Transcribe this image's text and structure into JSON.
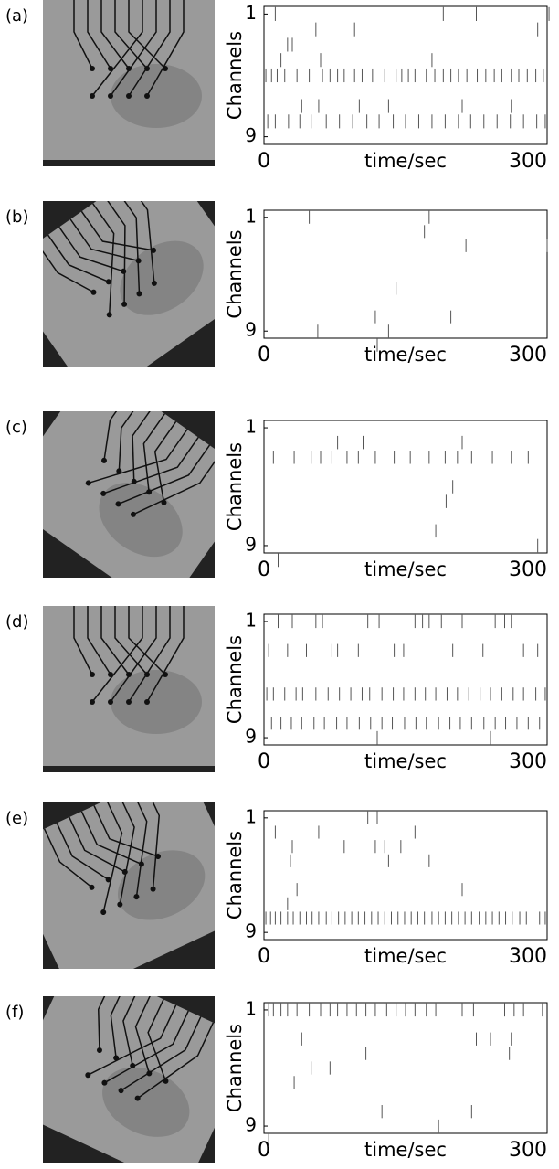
{
  "chart_data": [
    {
      "type": "raster",
      "panel_label": "(a)",
      "ylabel": "Channels",
      "xlabel": "time/sec",
      "xlim": [
        0,
        300
      ],
      "xticks": [
        0,
        300
      ],
      "ylim": [
        9.5,
        0.5
      ],
      "yticks": [
        1,
        9
      ],
      "color": "#555555",
      "events": [
        {
          "channel": 1,
          "times": [
            12,
            190,
            225,
            302
          ]
        },
        {
          "channel": 2,
          "times": [
            55,
            96,
            290
          ]
        },
        {
          "channel": 3,
          "times": [
            25,
            30
          ]
        },
        {
          "channel": 4,
          "times": [
            18,
            60,
            178
          ]
        },
        {
          "channel": 5,
          "times": [
            2,
            8,
            14,
            22,
            35,
            48,
            62,
            70,
            78,
            85,
            96,
            104,
            115,
            128,
            140,
            146,
            153,
            160,
            172,
            181,
            190,
            198,
            206,
            215,
            226,
            235,
            244,
            252,
            262,
            270,
            279,
            288,
            296
          ]
        },
        {
          "channel": 7,
          "times": [
            40,
            58,
            101,
            132,
            210,
            262
          ]
        },
        {
          "channel": 8,
          "times": [
            4,
            12,
            26,
            38,
            50,
            66,
            80,
            94,
            109,
            122,
            137,
            150,
            164,
            178,
            192,
            206,
            219,
            233,
            247,
            261,
            275,
            289,
            298
          ]
        }
      ]
    },
    {
      "type": "raster",
      "panel_label": "(b)",
      "ylabel": "Channels",
      "xlabel": "time/sec",
      "xlim": [
        0,
        300
      ],
      "xticks": [
        0,
        300
      ],
      "ylim": [
        9.5,
        0.5
      ],
      "yticks": [
        1,
        9
      ],
      "color": "#555555",
      "events": [
        {
          "channel": 1,
          "times": [
            48,
            175
          ]
        },
        {
          "channel": 2,
          "times": [
            170
          ]
        },
        {
          "channel": 3,
          "times": [
            214,
            300
          ]
        },
        {
          "channel": 6,
          "times": [
            140
          ]
        },
        {
          "channel": 8,
          "times": [
            118,
            198
          ]
        },
        {
          "channel": 9,
          "times": [
            57,
            132
          ]
        },
        {
          "channel": 10,
          "times": [
            120
          ]
        }
      ]
    },
    {
      "type": "raster",
      "panel_label": "(c)",
      "ylabel": "Channels",
      "xlabel": "time/sec",
      "xlim": [
        0,
        300
      ],
      "xticks": [
        0,
        300
      ],
      "ylim": [
        9.5,
        0.5
      ],
      "yticks": [
        1,
        9
      ],
      "color": "#555555",
      "events": [
        {
          "channel": 2,
          "times": [
            78,
            105,
            210
          ]
        },
        {
          "channel": 3,
          "times": [
            10,
            32,
            50,
            60,
            72,
            88,
            100,
            118,
            138,
            155,
            175,
            192,
            205,
            220,
            242,
            262,
            280
          ]
        },
        {
          "channel": 5,
          "times": [
            200
          ]
        },
        {
          "channel": 6,
          "times": [
            193
          ]
        },
        {
          "channel": 8,
          "times": [
            182
          ]
        },
        {
          "channel": 9,
          "times": [
            290
          ]
        },
        {
          "channel": 10,
          "times": [
            15
          ]
        }
      ]
    },
    {
      "type": "raster",
      "panel_label": "(d)",
      "ylabel": "Channels",
      "xlabel": "time/sec",
      "xlim": [
        0,
        300
      ],
      "xticks": [
        0,
        300
      ],
      "ylim": [
        9.5,
        0.5
      ],
      "yticks": [
        1,
        9
      ],
      "color": "#555555",
      "events": [
        {
          "channel": 1,
          "times": [
            15,
            30,
            55,
            62,
            110,
            122,
            160,
            168,
            175,
            188,
            195,
            210,
            245,
            255,
            262
          ]
        },
        {
          "channel": 3,
          "times": [
            5,
            25,
            45,
            72,
            78,
            100,
            138,
            148,
            200,
            232,
            275,
            290
          ]
        },
        {
          "channel": 6,
          "times": [
            3,
            10,
            22,
            34,
            41,
            55,
            68,
            80,
            92,
            104,
            112,
            125,
            137,
            148,
            160,
            171,
            182,
            194,
            205,
            217,
            229,
            240,
            252,
            264,
            275,
            288,
            298
          ]
        },
        {
          "channel": 8,
          "times": [
            8,
            18,
            29,
            40,
            53,
            64,
            77,
            88,
            101,
            113,
            125,
            136,
            149,
            161,
            172,
            185,
            197,
            208,
            220,
            233,
            245,
            256,
            268,
            280,
            292
          ]
        },
        {
          "channel": 9,
          "times": [
            120,
            240
          ]
        }
      ]
    },
    {
      "type": "raster",
      "panel_label": "(e)",
      "ylabel": "Channels",
      "xlabel": "time/sec",
      "xlim": [
        0,
        300
      ],
      "xticks": [
        0,
        300
      ],
      "ylim": [
        9.5,
        0.5
      ],
      "yticks": [
        1,
        9
      ],
      "color": "#555555",
      "events": [
        {
          "channel": 1,
          "times": [
            110,
            120,
            285
          ]
        },
        {
          "channel": 2,
          "times": [
            12,
            58,
            160
          ]
        },
        {
          "channel": 3,
          "times": [
            30,
            85,
            118,
            128,
            145
          ]
        },
        {
          "channel": 4,
          "times": [
            28,
            132,
            175
          ]
        },
        {
          "channel": 6,
          "times": [
            35,
            210
          ]
        },
        {
          "channel": 7,
          "times": [
            25
          ]
        },
        {
          "channel": 8,
          "times": [
            2,
            7,
            12,
            18,
            25,
            31,
            38,
            45,
            51,
            58,
            66,
            72,
            79,
            86,
            93,
            100,
            107,
            114,
            121,
            128,
            135,
            142,
            149,
            156,
            163,
            170,
            178,
            185,
            192,
            199,
            206,
            213,
            220,
            228,
            235,
            242,
            249,
            256,
            263,
            271,
            278,
            285,
            292,
            298
          ]
        }
      ]
    },
    {
      "type": "raster",
      "panel_label": "(f)",
      "ylabel": "Channels",
      "xlabel": "time/sec",
      "xlim": [
        0,
        300
      ],
      "xticks": [
        0,
        300
      ],
      "ylim": [
        9.5,
        0.5
      ],
      "yticks": [
        1,
        9
      ],
      "color": "#555555",
      "events": [
        {
          "channel": 1,
          "times": [
            5,
            10,
            18,
            25,
            35,
            48,
            60,
            70,
            78,
            88,
            98,
            108,
            118,
            130,
            140,
            150,
            160,
            172,
            182,
            195,
            210,
            222,
            255,
            265,
            275,
            285,
            295
          ]
        },
        {
          "channel": 3,
          "times": [
            40,
            225,
            240,
            262
          ]
        },
        {
          "channel": 4,
          "times": [
            108,
            260
          ]
        },
        {
          "channel": 5,
          "times": [
            50,
            70
          ]
        },
        {
          "channel": 6,
          "times": [
            32
          ]
        },
        {
          "channel": 8,
          "times": [
            125,
            220
          ]
        },
        {
          "channel": 9,
          "times": [
            185
          ]
        },
        {
          "channel": 10,
          "times": [
            5
          ]
        }
      ]
    }
  ]
}
